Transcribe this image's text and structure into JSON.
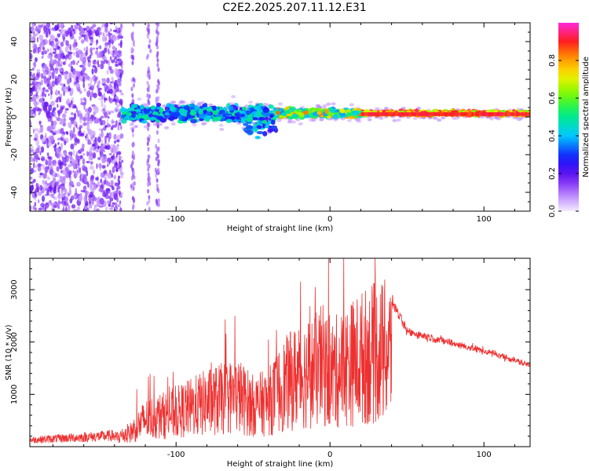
{
  "title": "C2E2.2025.207.11.12.E31",
  "chart_data": [
    {
      "type": "heatmap",
      "xlabel": "Height of straight line (km)",
      "ylabel": "Frequency (Hz)",
      "xlim": [
        -195,
        130
      ],
      "ylim": [
        -50,
        50
      ],
      "x_ticks": [
        -100,
        0,
        100
      ],
      "y_ticks": [
        -40,
        -20,
        0,
        20,
        40
      ],
      "colorbar": {
        "label": "Normalized spectral amplitude",
        "range": [
          0,
          1
        ],
        "ticks": [
          0.0,
          0.2,
          0.4,
          0.6,
          0.8
        ],
        "tick_labels": [
          "0.0",
          "0.2",
          "0.4",
          "0.6",
          "0.8"
        ],
        "colormap": "rainbow white-violet-blue-cyan-green-yellow-orange-red-magenta"
      },
      "description_of_field": [
        {
          "x_range": [
            -195,
            -135
          ],
          "freq_spread": [
            -50,
            50
          ],
          "amplitude": 0.1
        },
        {
          "x_range": [
            -135,
            -35
          ],
          "freq_center": 2,
          "freq_half_width": 7,
          "amplitude": 0.35
        },
        {
          "x_range": [
            -35,
            20
          ],
          "freq_center": 1.5,
          "freq_half_width": 3,
          "amplitude": 0.75
        },
        {
          "x_range": [
            20,
            130
          ],
          "freq_center": 1.5,
          "freq_half_width": 1.5,
          "amplitude": 0.85
        }
      ],
      "grid": false
    },
    {
      "type": "line",
      "xlabel": "Height of straight line (km)",
      "ylabel": "SNR (10 * v/v)",
      "xlim": [
        -195,
        130
      ],
      "ylim": [
        0,
        3600
      ],
      "x_ticks": [
        -100,
        0,
        100
      ],
      "y_ticks": [
        1000,
        2000,
        3000
      ],
      "color": "#ee3030",
      "envelope": {
        "x": [
          -195,
          -140,
          -130,
          -120,
          -100,
          -80,
          -60,
          -50,
          -40,
          -30,
          -20,
          -10,
          -5,
          0,
          10,
          20,
          30,
          40,
          45,
          50,
          70,
          90,
          110,
          130
        ],
        "y": [
          150,
          250,
          400,
          800,
          1000,
          1300,
          1500,
          1200,
          1300,
          1800,
          2100,
          2200,
          2400,
          2100,
          2350,
          2600,
          2750,
          2800,
          2500,
          2200,
          2050,
          1900,
          1750,
          1550
        ]
      },
      "grid": false
    }
  ]
}
